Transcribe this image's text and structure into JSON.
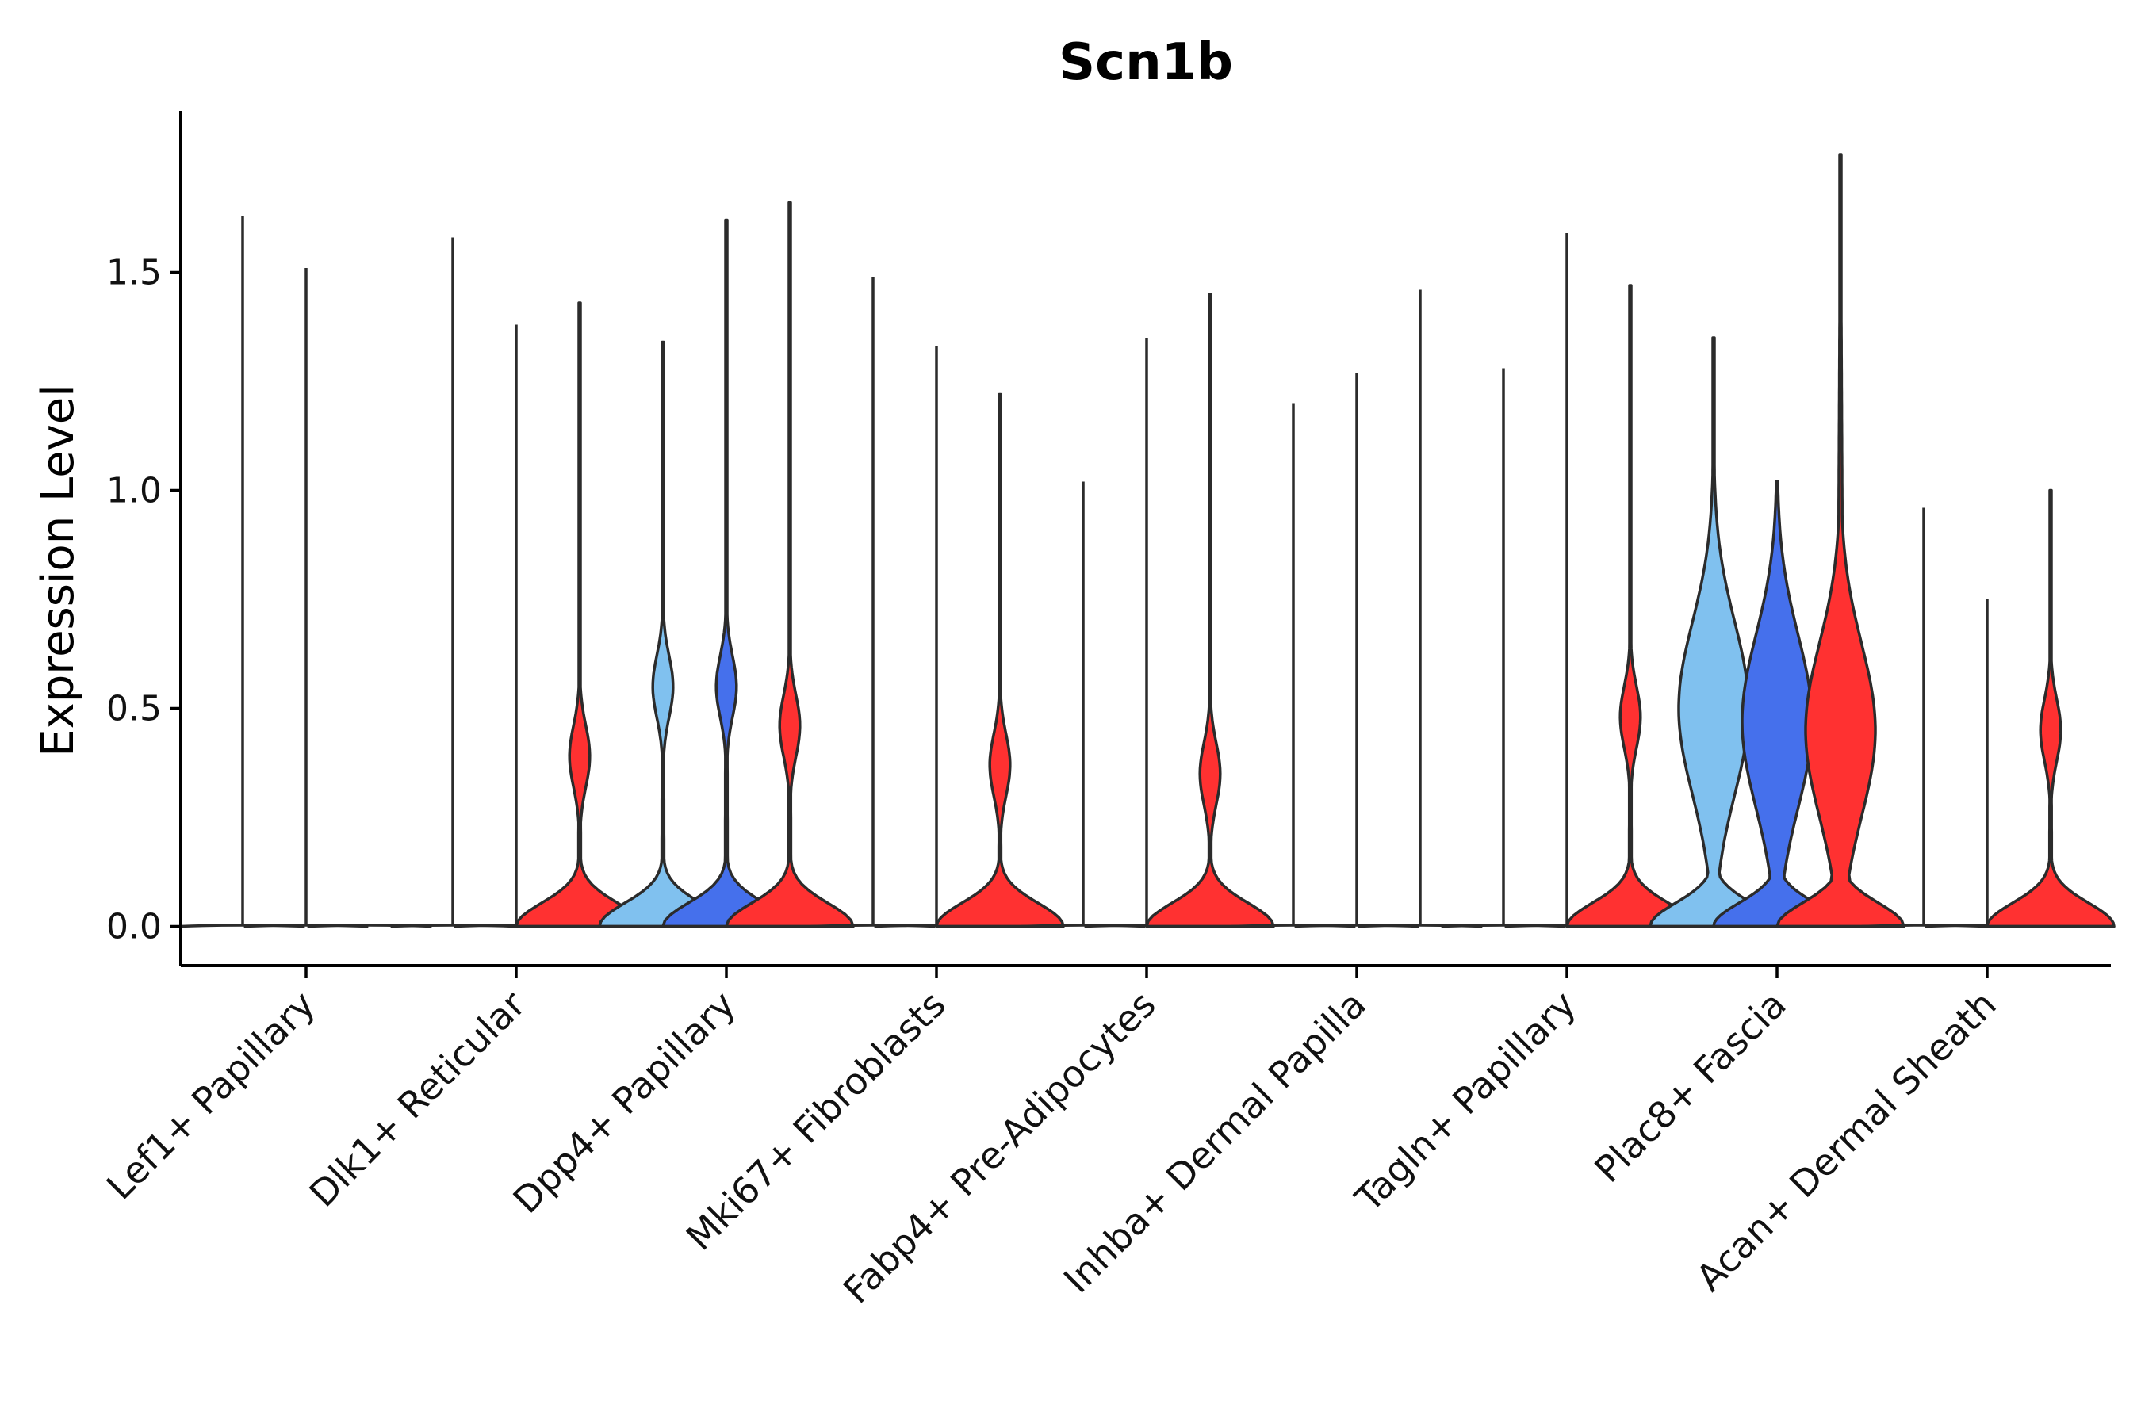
{
  "chart_data": {
    "type": "violin",
    "title": "Scn1b",
    "xlabel": "",
    "ylabel": "Expression Level",
    "ylim": [
      -0.09,
      1.87
    ],
    "yticks": [
      0.0,
      0.5,
      1.0,
      1.5
    ],
    "ytick_labels": [
      "0.0",
      "0.5",
      "1.0",
      "1.5"
    ],
    "grid": false,
    "legend": "none",
    "group_colors": {
      "group1": "#80c1ef",
      "group2": "#4570ec",
      "group3": "#ff3131"
    },
    "categories": [
      "Lef1+ Papillary",
      "Dlk1+ Reticular",
      "Dpp4+ Papillary",
      "Mki67+ Fibroblasts",
      "Fabp4+ Pre-Adipocytes",
      "Inhba+ Dermal Papilla",
      "Tagln+ Papillary",
      "Plac8+ Fascia",
      "Acan+ Dermal Sheath"
    ],
    "violins": [
      {
        "category": "Lef1+ Papillary",
        "group": "group1",
        "max": 1.63,
        "mode": 0.0,
        "shape": "flat"
      },
      {
        "category": "Lef1+ Papillary",
        "group": "group2",
        "max": 1.51,
        "mode": 0.0,
        "shape": "flat"
      },
      {
        "category": "Lef1+ Papillary",
        "group": "group3",
        "max": 0.0,
        "mode": 0.0,
        "shape": "flat"
      },
      {
        "category": "Dlk1+ Reticular",
        "group": "group1",
        "max": 1.58,
        "mode": 0.0,
        "shape": "flat"
      },
      {
        "category": "Dlk1+ Reticular",
        "group": "group2",
        "max": 1.38,
        "mode": 0.0,
        "shape": "flat"
      },
      {
        "category": "Dlk1+ Reticular",
        "group": "group3",
        "max": 1.43,
        "mode": 0.39,
        "shape": "bimodal"
      },
      {
        "category": "Dpp4+ Papillary",
        "group": "group1",
        "max": 1.34,
        "mode": 0.55,
        "shape": "bimodal"
      },
      {
        "category": "Dpp4+ Papillary",
        "group": "group2",
        "max": 1.62,
        "mode": 0.55,
        "shape": "bimodal"
      },
      {
        "category": "Dpp4+ Papillary",
        "group": "group3",
        "max": 1.66,
        "mode": 0.46,
        "shape": "bimodal"
      },
      {
        "category": "Mki67+ Fibroblasts",
        "group": "group1",
        "max": 1.49,
        "mode": 0.0,
        "shape": "flat"
      },
      {
        "category": "Mki67+ Fibroblasts",
        "group": "group2",
        "max": 1.33,
        "mode": 0.0,
        "shape": "flat"
      },
      {
        "category": "Mki67+ Fibroblasts",
        "group": "group3",
        "max": 1.22,
        "mode": 0.37,
        "shape": "bimodal"
      },
      {
        "category": "Fabp4+ Pre-Adipocytes",
        "group": "group1",
        "max": 1.02,
        "mode": 0.0,
        "shape": "flat"
      },
      {
        "category": "Fabp4+ Pre-Adipocytes",
        "group": "group2",
        "max": 1.35,
        "mode": 0.0,
        "shape": "flat"
      },
      {
        "category": "Fabp4+ Pre-Adipocytes",
        "group": "group3",
        "max": 1.45,
        "mode": 0.35,
        "shape": "bimodal"
      },
      {
        "category": "Inhba+ Dermal Papilla",
        "group": "group1",
        "max": 1.2,
        "mode": 0.0,
        "shape": "flat"
      },
      {
        "category": "Inhba+ Dermal Papilla",
        "group": "group2",
        "max": 1.27,
        "mode": 0.0,
        "shape": "flat"
      },
      {
        "category": "Inhba+ Dermal Papilla",
        "group": "group3",
        "max": 1.46,
        "mode": 0.0,
        "shape": "flat"
      },
      {
        "category": "Tagln+ Papillary",
        "group": "group1",
        "max": 1.28,
        "mode": 0.0,
        "shape": "flat"
      },
      {
        "category": "Tagln+ Papillary",
        "group": "group2",
        "max": 1.59,
        "mode": 0.0,
        "shape": "flat"
      },
      {
        "category": "Tagln+ Papillary",
        "group": "group3",
        "max": 1.47,
        "mode": 0.48,
        "shape": "bimodal"
      },
      {
        "category": "Plac8+ Fascia",
        "group": "group1",
        "max": 1.35,
        "mode": 0.5,
        "shape": "broad"
      },
      {
        "category": "Plac8+ Fascia",
        "group": "group2",
        "max": 1.02,
        "mode": 0.47,
        "shape": "broad"
      },
      {
        "category": "Plac8+ Fascia",
        "group": "group3",
        "max": 1.77,
        "mode": 0.45,
        "shape": "broad"
      },
      {
        "category": "Acan+ Dermal Sheath",
        "group": "group1",
        "max": 0.96,
        "mode": 0.0,
        "shape": "flat"
      },
      {
        "category": "Acan+ Dermal Sheath",
        "group": "group2",
        "max": 0.75,
        "mode": 0.0,
        "shape": "flat"
      },
      {
        "category": "Acan+ Dermal Sheath",
        "group": "group3",
        "max": 1.0,
        "mode": 0.45,
        "shape": "bimodal"
      }
    ]
  }
}
